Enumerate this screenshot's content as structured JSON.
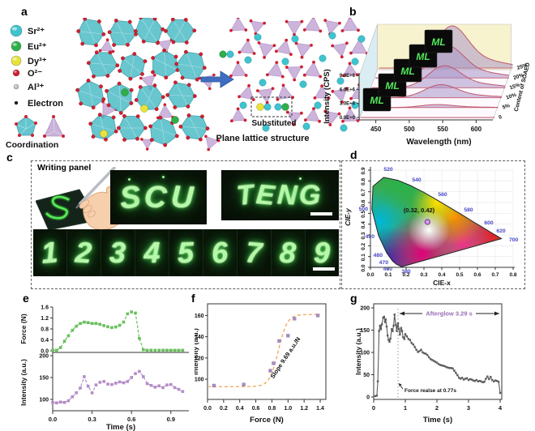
{
  "colors": {
    "sr": "#3fc4cf",
    "eu": "#2fae4a",
    "dy": "#e8e33b",
    "o": "#cf2030",
    "al": "#c2c2c2",
    "electron": "#1a1a1a",
    "polyhedron_cyan": "#54bfc9",
    "tetrahedron_purple": "#c9aed9",
    "arrow_blue": "#3f6ec0",
    "ml_green": "#52e85c",
    "force_green": "#6abf5e",
    "intensity_purple": "#b48cc8",
    "points_purple": "#9a7fb5",
    "fit_orange": "#f2a964",
    "trace_gray": "#5b5b5b",
    "afterglow_purple": "#9a6cb8",
    "wavelength_blue": "#4646c8",
    "wall_blue": "#d9edf2",
    "wall_yellow": "#f8f3cf",
    "curve_fill": "#a995c9",
    "curve_line": "#c2556a"
  },
  "panels": {
    "a": {
      "label": "a",
      "legend": [
        {
          "key": "sr",
          "label": "Sr²⁺",
          "size": 7
        },
        {
          "key": "eu",
          "label": "Eu²⁺",
          "size": 6
        },
        {
          "key": "dy",
          "label": "Dy³⁺",
          "size": 6
        },
        {
          "key": "o",
          "label": "O²⁻",
          "size": 4
        },
        {
          "key": "al",
          "label": "Al³⁺",
          "size": 3
        },
        {
          "key": "electron",
          "label": "Electron",
          "size": 2
        }
      ],
      "coordination_label": "Coordination",
      "substituted_label": "Substituted",
      "caption": "Plane lattice structure"
    },
    "b": {
      "label": "b"
    },
    "c": {
      "label": "c",
      "writing_panel_label": "Writing panel",
      "words": [
        "SCU",
        "TENG"
      ],
      "digits": [
        "1",
        "2",
        "3",
        "4",
        "5",
        "6",
        "7",
        "8",
        "9"
      ]
    },
    "d": {
      "label": "d"
    },
    "e": {
      "label": "e"
    },
    "f": {
      "label": "f"
    },
    "g": {
      "label": "g"
    }
  },
  "chart_data": [
    {
      "panel": "b",
      "type": "area",
      "projection": "3d-waterfall",
      "title": "",
      "xlabel": "Wavelength (nm)",
      "x_range": [
        425,
        625
      ],
      "x_ticks": [
        450,
        500,
        550,
        600
      ],
      "ylabel": "Intensity (CPS)",
      "y_ticks": [
        "0.0E+0",
        "3.0E+6",
        "6.0E+6",
        "9.0E+6"
      ],
      "y_range": [
        0,
        9000000
      ],
      "depth_label": "Content of SOAED",
      "depth_ticks": [
        "0",
        "5%",
        "10%",
        "15%",
        "20%",
        "25%"
      ],
      "peak_nm": 533,
      "sigma_nm": 24,
      "series": [
        {
          "name": "0",
          "peak_cps": 0
        },
        {
          "name": "5%",
          "peak_cps": 600000
        },
        {
          "name": "10%",
          "peak_cps": 2600000
        },
        {
          "name": "15%",
          "peak_cps": 4400000
        },
        {
          "name": "20%",
          "peak_cps": 6300000
        },
        {
          "name": "25%",
          "peak_cps": 8400000
        }
      ],
      "curve_label": "ML"
    },
    {
      "panel": "d",
      "type": "scatter",
      "subtype": "cie1931",
      "xlabel": "CIE-x",
      "ylabel": "CIE-y",
      "x_ticks": [
        "0.0",
        "0.1",
        "0.2",
        "0.3",
        "0.4",
        "0.5",
        "0.6",
        "0.7",
        "0.8"
      ],
      "y_ticks": [
        "0.0",
        "0.1",
        "0.2",
        "0.3",
        "0.4",
        "0.5",
        "0.6",
        "0.7",
        "0.8",
        "0.9"
      ],
      "point": [
        0.32,
        0.42
      ],
      "point_label": "(0.32, 0.42)",
      "wavelength_labels": [
        "520",
        "540",
        "560",
        "580",
        "600",
        "620",
        "700",
        "500",
        "490",
        "480",
        "470",
        "460",
        "380"
      ]
    },
    {
      "panel": "e",
      "type": "line",
      "xlabel": "Time (s)",
      "x_ticks": [
        "0.0",
        "0.3",
        "0.6",
        "0.9"
      ],
      "x_range": [
        0,
        1.0
      ],
      "t_step": 0.03,
      "subplots": [
        {
          "ylabel": "Force (N)",
          "y_ticks": [
            "0.0",
            "0.4",
            "0.8",
            "1.2",
            "1.6"
          ],
          "y_range": [
            0,
            1.75
          ],
          "values": [
            0.02,
            0.02,
            0.12,
            0.35,
            0.55,
            0.75,
            0.9,
            1.0,
            1.05,
            1.03,
            1.0,
            1.0,
            0.97,
            0.92,
            0.88,
            0.85,
            0.87,
            0.93,
            1.05,
            1.35,
            1.42,
            1.38,
            0.45,
            0.04,
            0.02,
            0.02,
            0.02,
            0.02,
            0.02,
            0.02,
            0.02,
            0.02,
            0.02,
            0.02
          ]
        },
        {
          "ylabel": "Intensity (a.u.)",
          "y_ticks": [
            "100",
            "150",
            "200"
          ],
          "y_range": [
            74,
            210
          ],
          "values": [
            93,
            92,
            94,
            93,
            97,
            106,
            115,
            126,
            152,
            130,
            115,
            133,
            139,
            141,
            135,
            134,
            137,
            140,
            138,
            141,
            150,
            159,
            164,
            152,
            136,
            132,
            128,
            131,
            127,
            133,
            134,
            127,
            123,
            118
          ]
        }
      ]
    },
    {
      "panel": "f",
      "type": "scatter",
      "xlabel": "Force (N)",
      "ylabel": "Intensity (a.u.)",
      "x_ticks": [
        "0.0",
        "0.2",
        "0.4",
        "0.6",
        "0.8",
        "1.0",
        "1.2",
        "1.4"
      ],
      "y_ticks": [
        "100",
        "120",
        "140",
        "160"
      ],
      "x_range": [
        0,
        1.47
      ],
      "y_range": [
        81,
        171
      ],
      "points": [
        [
          0.08,
          94
        ],
        [
          0.45,
          95
        ],
        [
          0.78,
          108
        ],
        [
          0.82,
          115
        ],
        [
          0.89,
          136
        ],
        [
          1.0,
          141
        ],
        [
          1.08,
          157
        ],
        [
          1.37,
          160
        ]
      ],
      "fit": {
        "shape": "sigmoid",
        "base": 93,
        "amplitude": 68,
        "midpoint": 0.88,
        "width": 0.055
      },
      "annotation": "Slope 9.69 a.u./N"
    },
    {
      "panel": "g",
      "type": "line",
      "xlabel": "Time (s)",
      "ylabel": "Intensity (a.u.)",
      "x_ticks": [
        "0",
        "1",
        "2",
        "3",
        "4"
      ],
      "y_ticks": [
        "0",
        "50",
        "100",
        "150",
        "200"
      ],
      "x_range": [
        0,
        4.05
      ],
      "y_range": [
        -5,
        205
      ],
      "points": [
        [
          0.05,
          2
        ],
        [
          0.1,
          3
        ],
        [
          0.13,
          35
        ],
        [
          0.17,
          148
        ],
        [
          0.2,
          160
        ],
        [
          0.23,
          152
        ],
        [
          0.26,
          163
        ],
        [
          0.3,
          178
        ],
        [
          0.33,
          180
        ],
        [
          0.36,
          168
        ],
        [
          0.38,
          174
        ],
        [
          0.41,
          158
        ],
        [
          0.44,
          138
        ],
        [
          0.47,
          128
        ],
        [
          0.5,
          124
        ],
        [
          0.53,
          131
        ],
        [
          0.57,
          152
        ],
        [
          0.6,
          148
        ],
        [
          0.63,
          160
        ],
        [
          0.66,
          185
        ],
        [
          0.7,
          162
        ],
        [
          0.73,
          148
        ],
        [
          0.75,
          158
        ],
        [
          0.77,
          165
        ],
        [
          0.8,
          152
        ],
        [
          0.83,
          140
        ],
        [
          0.87,
          155
        ],
        [
          0.9,
          148
        ],
        [
          0.93,
          134
        ],
        [
          0.97,
          130
        ],
        [
          1.0,
          141
        ],
        [
          1.05,
          136
        ],
        [
          1.1,
          130
        ],
        [
          1.15,
          128
        ],
        [
          1.2,
          121
        ],
        [
          1.25,
          118
        ],
        [
          1.3,
          112
        ],
        [
          1.35,
          106
        ],
        [
          1.4,
          101
        ],
        [
          1.45,
          103
        ],
        [
          1.5,
          106
        ],
        [
          1.55,
          100
        ],
        [
          1.6,
          98
        ],
        [
          1.65,
          97
        ],
        [
          1.7,
          94
        ],
        [
          1.75,
          89
        ],
        [
          1.8,
          85
        ],
        [
          1.85,
          83
        ],
        [
          1.9,
          81
        ],
        [
          1.95,
          79
        ],
        [
          2.0,
          77
        ],
        [
          2.05,
          74
        ],
        [
          2.1,
          72
        ],
        [
          2.15,
          71
        ],
        [
          2.2,
          70
        ],
        [
          2.25,
          69
        ],
        [
          2.3,
          67
        ],
        [
          2.35,
          66
        ],
        [
          2.4,
          65
        ],
        [
          2.45,
          65
        ],
        [
          2.5,
          64
        ],
        [
          2.55,
          59
        ],
        [
          2.6,
          54
        ],
        [
          2.65,
          49
        ],
        [
          2.7,
          43
        ],
        [
          2.75,
          41
        ],
        [
          2.8,
          43
        ],
        [
          2.85,
          39
        ],
        [
          2.9,
          41
        ],
        [
          2.95,
          42
        ],
        [
          3.0,
          38
        ],
        [
          3.05,
          40
        ],
        [
          3.1,
          39
        ],
        [
          3.15,
          37
        ],
        [
          3.2,
          36
        ],
        [
          3.25,
          38
        ],
        [
          3.3,
          35
        ],
        [
          3.35,
          36
        ],
        [
          3.4,
          35
        ],
        [
          3.45,
          33
        ],
        [
          3.5,
          34
        ],
        [
          3.55,
          41
        ],
        [
          3.6,
          46
        ],
        [
          3.65,
          40
        ],
        [
          3.7,
          45
        ],
        [
          3.75,
          38
        ],
        [
          3.8,
          35
        ],
        [
          3.85,
          37
        ],
        [
          3.9,
          36
        ],
        [
          3.95,
          34
        ],
        [
          4.0,
          9
        ]
      ],
      "annotations": {
        "afterglow": "Afterglow 3.29 s",
        "release": "Force realse at 0.77s",
        "release_time": 0.77
      }
    }
  ]
}
